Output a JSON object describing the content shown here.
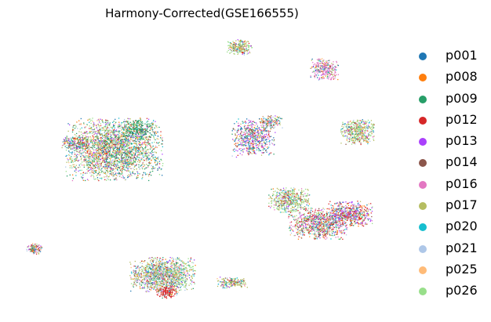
{
  "chart_data": {
    "type": "scatter",
    "title": "Harmony-Corrected(GSE166555)",
    "xlabel": "",
    "ylabel": "",
    "grid": false,
    "axes_visible": false,
    "legend_placement": "right",
    "series": [
      {
        "name": "p001",
        "color": "#1f77b4"
      },
      {
        "name": "p008",
        "color": "#ff7f0e"
      },
      {
        "name": "p009",
        "color": "#279e68"
      },
      {
        "name": "p012",
        "color": "#d62728"
      },
      {
        "name": "p013",
        "color": "#aa40fc"
      },
      {
        "name": "p014",
        "color": "#8c564b"
      },
      {
        "name": "p016",
        "color": "#e377c2"
      },
      {
        "name": "p017",
        "color": "#b5bd61"
      },
      {
        "name": "p020",
        "color": "#17becf"
      },
      {
        "name": "p021",
        "color": "#aec7e8"
      },
      {
        "name": "p025",
        "color": "#ffbb78"
      },
      {
        "name": "p026",
        "color": "#98df8a"
      }
    ]
  }
}
